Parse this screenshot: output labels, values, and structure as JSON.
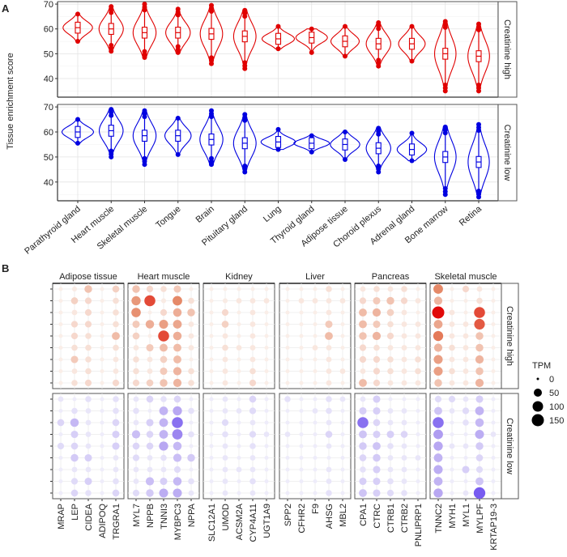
{
  "chart_data": [
    {
      "type": "violin",
      "panel_label": "A",
      "ylabel": "Tissue enrichment score",
      "ylim": [
        32.5,
        71
      ],
      "yticks": [
        40,
        50,
        60,
        70
      ],
      "grid": true,
      "categories": [
        "Parathyroid gland",
        "Heart muscle",
        "Skeletal muscle",
        "Tongue",
        "Brain",
        "Pituitary gland",
        "Lung",
        "Thyroid gland",
        "Adipose tissue",
        "Choroid plexus",
        "Adrenal gland",
        "Bone marrow",
        "Retina"
      ],
      "series": [
        {
          "name": "Creatinine high",
          "color": "#e00000",
          "median": [
            60.5,
            60,
            58.5,
            58.5,
            58,
            57,
            56,
            56.5,
            55,
            54,
            54,
            50,
            49
          ],
          "min": [
            55,
            51,
            48.5,
            50.5,
            46,
            44,
            52,
            50.5,
            49,
            45,
            47,
            35,
            35
          ],
          "max": [
            66,
            69,
            70,
            68,
            69.5,
            67.5,
            61,
            60,
            61,
            62.5,
            61,
            63,
            62
          ]
        },
        {
          "name": "Creatinine low",
          "color": "#0000e0",
          "median": [
            60,
            60.5,
            58.5,
            58.5,
            57,
            55.5,
            56,
            55.5,
            55,
            53.5,
            53,
            50,
            48
          ],
          "min": [
            55.5,
            50,
            47,
            51,
            47,
            44,
            53,
            52,
            49,
            44,
            48.5,
            35,
            34
          ],
          "max": [
            65,
            69,
            68.5,
            65.5,
            68.5,
            67,
            61,
            58.5,
            60,
            61.5,
            59.5,
            62,
            63
          ]
        }
      ]
    },
    {
      "type": "dot",
      "panel_label": "B",
      "size_legend": {
        "title": "TPM",
        "values": [
          0,
          50,
          100,
          150
        ]
      },
      "rows_per_condition": 9,
      "conditions": [
        {
          "name": "Creatinine high",
          "color_low": "#faeee8",
          "color_mid": "#e4825f",
          "color_high": "#e10a0a"
        },
        {
          "name": "Creatinine low",
          "color_low": "#eeecfa",
          "color_mid": "#aa96f0",
          "color_high": "#6446f0"
        }
      ],
      "facets": [
        {
          "name": "Adipose tissue",
          "genes": [
            "MRAP",
            "LEP",
            "CIDEA",
            "ADIPOQ",
            "TRGRA1"
          ],
          "high": [
            [
              0,
              0,
              0,
              0,
              0,
              0,
              0,
              0,
              0
            ],
            [
              2,
              20,
              5,
              15,
              15,
              10,
              25,
              5,
              10
            ],
            [
              30,
              15,
              15,
              15,
              10,
              10,
              10,
              10,
              15
            ],
            [
              0,
              0,
              0,
              0,
              0,
              0,
              0,
              0,
              0
            ],
            [
              20,
              10,
              10,
              10,
              35,
              10,
              5,
              5,
              15
            ]
          ],
          "low": [
            [
              5,
              0,
              20,
              0,
              15,
              0,
              0,
              0,
              0
            ],
            [
              0,
              10,
              45,
              25,
              20,
              30,
              5,
              15,
              20
            ],
            [
              10,
              5,
              5,
              5,
              5,
              25,
              5,
              25,
              10
            ],
            [
              0,
              0,
              0,
              0,
              0,
              0,
              0,
              0,
              0
            ],
            [
              10,
              10,
              20,
              25,
              25,
              5,
              5,
              10,
              20
            ]
          ]
        },
        {
          "name": "Heart muscle",
          "genes": [
            "MYL7",
            "NPPB",
            "TNNI3",
            "MYBPC3",
            "NPPA"
          ],
          "high": [
            [
              30,
              60,
              65,
              25,
              20,
              5,
              10,
              10,
              15
            ],
            [
              15,
              110,
              0,
              45,
              0,
              25,
              5,
              5,
              20
            ],
            [
              10,
              2,
              15,
              55,
              110,
              35,
              20,
              25,
              30
            ],
            [
              25,
              70,
              45,
              50,
              45,
              35,
              35,
              40,
              40
            ],
            [
              0,
              10,
              30,
              5,
              5,
              5,
              0,
              10,
              10
            ]
          ],
          "low": [
            [
              5,
              10,
              5,
              40,
              20,
              15,
              5,
              5,
              15
            ],
            [
              20,
              0,
              25,
              20,
              20,
              5,
              5,
              40,
              30
            ],
            [
              10,
              50,
              50,
              50,
              60,
              10,
              5,
              25,
              55
            ],
            [
              20,
              60,
              110,
              90,
              45,
              40,
              15,
              45,
              55
            ],
            [
              0,
              10,
              0,
              10,
              0,
              30,
              0,
              10,
              5
            ]
          ]
        },
        {
          "name": "Kidney",
          "genes": [
            "SLC12A1",
            "UMOD",
            "ACSM2A",
            "CYP4A11",
            "UGT1A9"
          ],
          "high": [
            [
              0,
              0,
              0,
              0,
              0,
              0,
              0,
              0,
              0
            ],
            [
              0,
              2,
              15,
              20,
              5,
              10,
              5,
              5,
              5
            ],
            [
              0,
              5,
              0,
              0,
              0,
              5,
              0,
              0,
              0
            ],
            [
              0,
              5,
              5,
              5,
              5,
              5,
              5,
              10,
              15
            ],
            [
              0,
              5,
              0,
              0,
              0,
              0,
              0,
              0,
              0
            ]
          ],
          "low": [
            [
              0,
              0,
              0,
              0,
              0,
              0,
              0,
              0,
              0
            ],
            [
              5,
              5,
              15,
              10,
              5,
              5,
              5,
              5,
              5
            ],
            [
              0,
              5,
              0,
              0,
              0,
              0,
              5,
              0,
              0
            ],
            [
              20,
              15,
              5,
              15,
              10,
              5,
              5,
              10,
              5
            ],
            [
              0,
              0,
              0,
              5,
              0,
              0,
              0,
              0,
              0
            ]
          ]
        },
        {
          "name": "Liver",
          "genes": [
            "SPP2",
            "CFHR2",
            "F9",
            "AHSG",
            "MBL2"
          ],
          "high": [
            [
              0,
              0,
              0,
              0,
              0,
              0,
              0,
              0,
              0
            ],
            [
              0,
              5,
              0,
              0,
              0,
              0,
              0,
              0,
              0
            ],
            [
              0,
              5,
              0,
              0,
              0,
              5,
              0,
              0,
              0
            ],
            [
              10,
              5,
              5,
              25,
              35,
              5,
              5,
              5,
              5
            ],
            [
              0,
              5,
              0,
              0,
              0,
              0,
              0,
              5,
              0
            ]
          ],
          "low": [
            [
              10,
              0,
              0,
              5,
              0,
              0,
              0,
              0,
              0
            ],
            [
              0,
              0,
              0,
              0,
              0,
              0,
              0,
              0,
              0
            ],
            [
              0,
              5,
              0,
              0,
              0,
              0,
              0,
              0,
              0
            ],
            [
              10,
              10,
              5,
              20,
              5,
              0,
              5,
              5,
              10
            ],
            [
              5,
              0,
              0,
              0,
              0,
              0,
              0,
              0,
              0
            ]
          ]
        },
        {
          "name": "Pancreas",
          "genes": [
            "CPA1",
            "CTRC",
            "CTRB1",
            "CTRB2",
            "PNLIPRP1"
          ],
          "high": [
            [
              5,
              15,
              35,
              35,
              30,
              15,
              15,
              5,
              35
            ],
            [
              10,
              25,
              40,
              25,
              40,
              10,
              15,
              15,
              15
            ],
            [
              5,
              30,
              20,
              10,
              15,
              5,
              10,
              10,
              5
            ],
            [
              10,
              15,
              5,
              5,
              5,
              5,
              5,
              5,
              5
            ],
            [
              0,
              5,
              0,
              5,
              5,
              5,
              10,
              10,
              5
            ]
          ],
          "low": [
            [
              5,
              25,
              110,
              35,
              30,
              20,
              10,
              25,
              35
            ],
            [
              25,
              25,
              20,
              25,
              35,
              30,
              25,
              25,
              25
            ],
            [
              0,
              5,
              5,
              25,
              10,
              5,
              5,
              10,
              15
            ],
            [
              0,
              5,
              5,
              20,
              5,
              5,
              5,
              5,
              10
            ],
            [
              0,
              0,
              0,
              0,
              0,
              5,
              0,
              0,
              0
            ]
          ]
        },
        {
          "name": "Skeletal muscle",
          "genes": [
            "TNNC2",
            "MYH1",
            "MYL1",
            "MYLPF",
            "KRTAP19-3"
          ],
          "high": [
            [
              70,
              40,
              150,
              50,
              80,
              40,
              55,
              55,
              30
            ],
            [
              0,
              0,
              5,
              5,
              5,
              10,
              5,
              10,
              5
            ],
            [
              15,
              0,
              0,
              5,
              5,
              5,
              5,
              5,
              5
            ],
            [
              5,
              10,
              110,
              100,
              30,
              30,
              40,
              30,
              40
            ],
            [
              0,
              0,
              0,
              0,
              0,
              0,
              0,
              0,
              0
            ]
          ],
          "low": [
            [
              15,
              35,
              110,
              70,
              60,
              50,
              55,
              50,
              60
            ],
            [
              15,
              5,
              0,
              0,
              5,
              0,
              0,
              0,
              0
            ],
            [
              5,
              15,
              10,
              0,
              5,
              0,
              25,
              0,
              5
            ],
            [
              25,
              50,
              45,
              55,
              30,
              20,
              15,
              35,
              130
            ],
            [
              0,
              0,
              0,
              5,
              0,
              0,
              0,
              0,
              0
            ]
          ]
        }
      ]
    }
  ]
}
